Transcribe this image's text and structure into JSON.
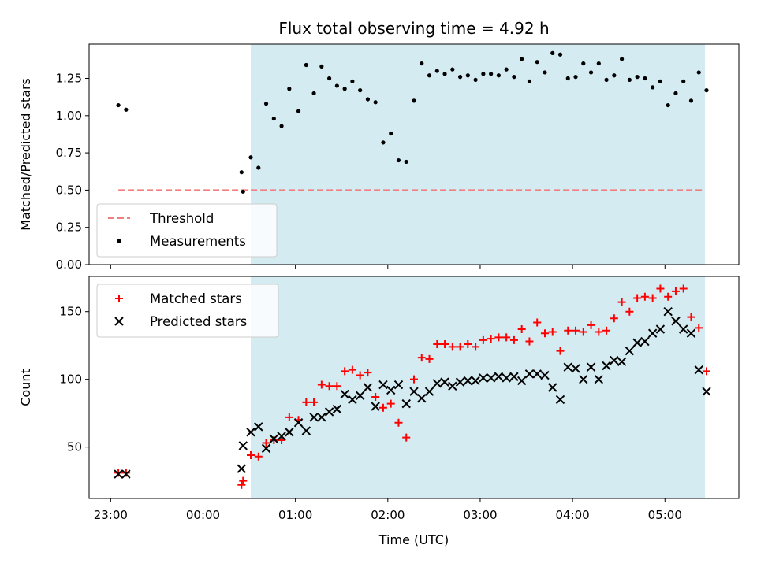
{
  "chart_data": [
    {
      "type": "scatter",
      "title": "Flux total observing time = 4.92 h",
      "xlabel": "",
      "ylabel": "Matched/Predicted stars",
      "ylim": [
        0,
        1.48
      ],
      "yticks": [
        "0.00",
        "0.25",
        "0.50",
        "0.75",
        "1.00",
        "1.25"
      ],
      "shaded_span": [
        "00:31",
        "05:26"
      ],
      "shade_color": "#d4ebf2",
      "threshold": {
        "name": "Threshold",
        "value": 0.5,
        "from": "23:05",
        "to": "05:26",
        "color": "#f08080"
      },
      "legend": {
        "position": "lower-left",
        "entries": [
          "Threshold",
          "Measurements"
        ]
      },
      "series": [
        {
          "name": "Measurements",
          "marker": "dot",
          "color": "#000000",
          "points": [
            [
              "23:05",
              1.07
            ],
            [
              "23:10",
              1.04
            ],
            [
              "00:25",
              0.62
            ],
            [
              "00:26",
              0.49
            ],
            [
              "00:31",
              0.72
            ],
            [
              "00:36",
              0.65
            ],
            [
              "00:41",
              1.08
            ],
            [
              "00:46",
              0.98
            ],
            [
              "00:51",
              0.93
            ],
            [
              "00:56",
              1.18
            ],
            [
              "01:02",
              1.03
            ],
            [
              "01:07",
              1.34
            ],
            [
              "01:12",
              1.15
            ],
            [
              "01:17",
              1.33
            ],
            [
              "01:22",
              1.25
            ],
            [
              "01:27",
              1.2
            ],
            [
              "01:32",
              1.18
            ],
            [
              "01:37",
              1.23
            ],
            [
              "01:42",
              1.17
            ],
            [
              "01:47",
              1.11
            ],
            [
              "01:52",
              1.09
            ],
            [
              "01:57",
              0.82
            ],
            [
              "02:02",
              0.88
            ],
            [
              "02:07",
              0.7
            ],
            [
              "02:12",
              0.69
            ],
            [
              "02:17",
              1.1
            ],
            [
              "02:22",
              1.35
            ],
            [
              "02:27",
              1.27
            ],
            [
              "02:32",
              1.3
            ],
            [
              "02:37",
              1.28
            ],
            [
              "02:42",
              1.31
            ],
            [
              "02:47",
              1.26
            ],
            [
              "02:52",
              1.27
            ],
            [
              "02:57",
              1.24
            ],
            [
              "03:02",
              1.28
            ],
            [
              "03:07",
              1.28
            ],
            [
              "03:12",
              1.27
            ],
            [
              "03:17",
              1.31
            ],
            [
              "03:22",
              1.26
            ],
            [
              "03:27",
              1.38
            ],
            [
              "03:32",
              1.23
            ],
            [
              "03:37",
              1.36
            ],
            [
              "03:42",
              1.29
            ],
            [
              "03:47",
              1.42
            ],
            [
              "03:52",
              1.41
            ],
            [
              "03:57",
              1.25
            ],
            [
              "04:02",
              1.26
            ],
            [
              "04:07",
              1.35
            ],
            [
              "04:12",
              1.29
            ],
            [
              "04:17",
              1.35
            ],
            [
              "04:22",
              1.24
            ],
            [
              "04:27",
              1.27
            ],
            [
              "04:32",
              1.38
            ],
            [
              "04:37",
              1.24
            ],
            [
              "04:42",
              1.26
            ],
            [
              "04:47",
              1.25
            ],
            [
              "04:52",
              1.19
            ],
            [
              "04:57",
              1.23
            ],
            [
              "05:02",
              1.07
            ],
            [
              "05:07",
              1.15
            ],
            [
              "05:12",
              1.23
            ],
            [
              "05:17",
              1.1
            ],
            [
              "05:22",
              1.29
            ],
            [
              "05:27",
              1.17
            ]
          ]
        }
      ]
    },
    {
      "type": "scatter",
      "title": "",
      "xlabel": "Time (UTC)",
      "ylabel": "Count",
      "ylim": [
        12,
        176
      ],
      "yticks": [
        "50",
        "100",
        "150"
      ],
      "xlim": [
        "22:46",
        "05:48"
      ],
      "xticks": [
        "23:00",
        "00:00",
        "01:00",
        "02:00",
        "03:00",
        "04:00",
        "05:00"
      ],
      "shaded_span": [
        "00:31",
        "05:26"
      ],
      "shade_color": "#d4ebf2",
      "legend": {
        "position": "upper-left",
        "entries": [
          "Matched stars",
          "Predicted stars"
        ]
      },
      "series": [
        {
          "name": "Matched stars",
          "marker": "plus",
          "color": "#ff0000",
          "points": [
            [
              "23:05",
              31
            ],
            [
              "23:10",
              31
            ],
            [
              "00:25",
              22
            ],
            [
              "00:26",
              25
            ],
            [
              "00:31",
              44
            ],
            [
              "00:36",
              43
            ],
            [
              "00:41",
              53
            ],
            [
              "00:46",
              55
            ],
            [
              "00:51",
              55
            ],
            [
              "00:56",
              72
            ],
            [
              "01:02",
              70
            ],
            [
              "01:07",
              83
            ],
            [
              "01:12",
              83
            ],
            [
              "01:17",
              96
            ],
            [
              "01:22",
              95
            ],
            [
              "01:27",
              95
            ],
            [
              "01:32",
              106
            ],
            [
              "01:37",
              107
            ],
            [
              "01:42",
              103
            ],
            [
              "01:47",
              105
            ],
            [
              "01:52",
              87
            ],
            [
              "01:57",
              79
            ],
            [
              "02:02",
              82
            ],
            [
              "02:07",
              68
            ],
            [
              "02:12",
              57
            ],
            [
              "02:17",
              100
            ],
            [
              "02:22",
              116
            ],
            [
              "02:27",
              115
            ],
            [
              "02:32",
              126
            ],
            [
              "02:37",
              126
            ],
            [
              "02:42",
              124
            ],
            [
              "02:47",
              124
            ],
            [
              "02:52",
              126
            ],
            [
              "02:57",
              124
            ],
            [
              "03:02",
              129
            ],
            [
              "03:07",
              130
            ],
            [
              "03:12",
              131
            ],
            [
              "03:17",
              131
            ],
            [
              "03:22",
              129
            ],
            [
              "03:27",
              137
            ],
            [
              "03:32",
              128
            ],
            [
              "03:37",
              142
            ],
            [
              "03:42",
              134
            ],
            [
              "03:47",
              135
            ],
            [
              "03:52",
              121
            ],
            [
              "03:57",
              136
            ],
            [
              "04:02",
              136
            ],
            [
              "04:07",
              135
            ],
            [
              "04:12",
              140
            ],
            [
              "04:17",
              135
            ],
            [
              "04:22",
              136
            ],
            [
              "04:27",
              145
            ],
            [
              "04:32",
              157
            ],
            [
              "04:37",
              150
            ],
            [
              "04:42",
              160
            ],
            [
              "04:47",
              161
            ],
            [
              "04:52",
              160
            ],
            [
              "04:57",
              167
            ],
            [
              "05:02",
              161
            ],
            [
              "05:07",
              165
            ],
            [
              "05:12",
              167
            ],
            [
              "05:17",
              146
            ],
            [
              "05:22",
              138
            ],
            [
              "05:27",
              106
            ]
          ]
        },
        {
          "name": "Predicted stars",
          "marker": "x",
          "color": "#000000",
          "points": [
            [
              "23:05",
              30
            ],
            [
              "23:10",
              30
            ],
            [
              "00:25",
              34
            ],
            [
              "00:26",
              51
            ],
            [
              "00:31",
              61
            ],
            [
              "00:36",
              65
            ],
            [
              "00:41",
              49
            ],
            [
              "00:46",
              56
            ],
            [
              "00:51",
              58
            ],
            [
              "00:56",
              61
            ],
            [
              "01:02",
              68
            ],
            [
              "01:07",
              62
            ],
            [
              "01:12",
              72
            ],
            [
              "01:17",
              72
            ],
            [
              "01:22",
              76
            ],
            [
              "01:27",
              78
            ],
            [
              "01:32",
              89
            ],
            [
              "01:37",
              85
            ],
            [
              "01:42",
              88
            ],
            [
              "01:47",
              94
            ],
            [
              "01:52",
              80
            ],
            [
              "01:57",
              96
            ],
            [
              "02:02",
              92
            ],
            [
              "02:07",
              96
            ],
            [
              "02:12",
              82
            ],
            [
              "02:17",
              91
            ],
            [
              "02:22",
              86
            ],
            [
              "02:27",
              91
            ],
            [
              "02:32",
              97
            ],
            [
              "02:37",
              98
            ],
            [
              "02:42",
              95
            ],
            [
              "02:47",
              98
            ],
            [
              "02:52",
              99
            ],
            [
              "02:57",
              99
            ],
            [
              "03:02",
              101
            ],
            [
              "03:07",
              101
            ],
            [
              "03:12",
              102
            ],
            [
              "03:17",
              101
            ],
            [
              "03:22",
              102
            ],
            [
              "03:27",
              99
            ],
            [
              "03:32",
              104
            ],
            [
              "03:37",
              104
            ],
            [
              "03:42",
              103
            ],
            [
              "03:47",
              94
            ],
            [
              "03:52",
              85
            ],
            [
              "03:57",
              109
            ],
            [
              "04:02",
              108
            ],
            [
              "04:07",
              100
            ],
            [
              "04:12",
              109
            ],
            [
              "04:17",
              100
            ],
            [
              "04:22",
              110
            ],
            [
              "04:27",
              114
            ],
            [
              "04:32",
              113
            ],
            [
              "04:37",
              121
            ],
            [
              "04:42",
              127
            ],
            [
              "04:47",
              128
            ],
            [
              "04:52",
              134
            ],
            [
              "04:57",
              137
            ],
            [
              "05:02",
              150
            ],
            [
              "05:07",
              143
            ],
            [
              "05:12",
              137
            ],
            [
              "05:17",
              134
            ],
            [
              "05:22",
              107
            ],
            [
              "05:27",
              91
            ]
          ]
        }
      ]
    }
  ]
}
